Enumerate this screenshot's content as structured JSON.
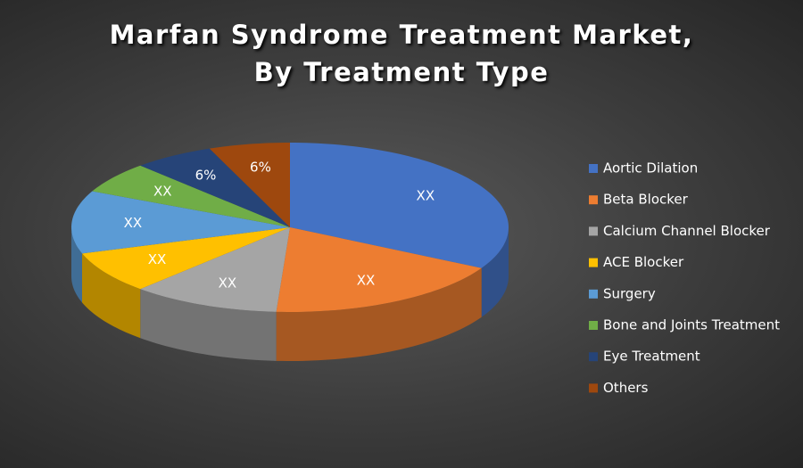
{
  "chart_data": {
    "type": "pie",
    "three_d": true,
    "title": "Marfan Syndrome Treatment Market, By Treatment Type",
    "categories": [
      "Aortic Dilation",
      "Beta Blocker",
      "Calcium Channel Blocker",
      "ACE Blocker",
      "Surgery",
      "Bone and Joints Treatment",
      "Eye Treatment",
      "Others"
    ],
    "values": [
      33,
      18,
      11,
      8,
      12,
      6,
      6,
      6
    ],
    "value_labels": [
      "XX",
      "XX",
      "XX",
      "XX",
      "XX",
      "XX",
      "6%",
      "6%"
    ],
    "colors": [
      "#4472c4",
      "#ed7d31",
      "#a5a5a5",
      "#ffc000",
      "#5b9bd5",
      "#70ad47",
      "#264478",
      "#9e480e"
    ],
    "legend": "right"
  }
}
